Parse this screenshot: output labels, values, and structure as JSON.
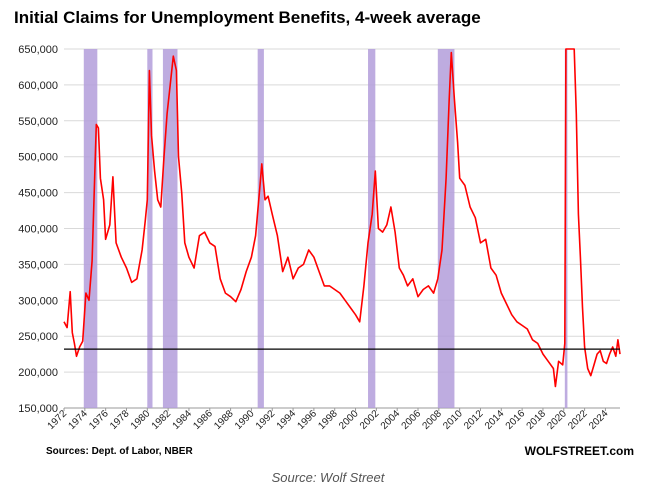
{
  "chart_data": {
    "type": "line",
    "title": "Initial Claims for Unemployment Benefits, 4-week average",
    "xlabel": "",
    "ylabel": "",
    "xlim": [
      1972,
      2025.4
    ],
    "ylim": [
      150000,
      650000
    ],
    "y_ticks": [
      150000,
      200000,
      250000,
      300000,
      350000,
      400000,
      450000,
      500000,
      550000,
      600000,
      650000
    ],
    "y_tick_labels": [
      "150,000",
      "200,000",
      "250,000",
      "300,000",
      "350,000",
      "400,000",
      "450,000",
      "500,000",
      "550,000",
      "600,000",
      "650,000"
    ],
    "x_ticks": [
      1972,
      1974,
      1976,
      1978,
      1980,
      1982,
      1984,
      1986,
      1988,
      1990,
      1992,
      1994,
      1996,
      1998,
      2000,
      2002,
      2004,
      2006,
      2008,
      2010,
      2012,
      2014,
      2016,
      2018,
      2020,
      2022,
      2024
    ],
    "grid": true,
    "line_color": "#ff0000",
    "recession_color": "#b39ddb",
    "reference_line": {
      "value": 232000,
      "color": "#000000"
    },
    "recessions": [
      [
        1973.9,
        1975.2
      ],
      [
        1980.0,
        1980.5
      ],
      [
        1981.5,
        1982.9
      ],
      [
        1990.6,
        1991.2
      ],
      [
        2001.2,
        2001.9
      ],
      [
        2007.9,
        2009.5
      ],
      [
        2020.1,
        2020.35
      ]
    ],
    "series": [
      {
        "values": [
          [
            1972.0,
            270000
          ],
          [
            1972.3,
            262000
          ],
          [
            1972.6,
            312000
          ],
          [
            1972.8,
            255000
          ],
          [
            1973.0,
            240000
          ],
          [
            1973.2,
            222000
          ],
          [
            1973.5,
            235000
          ],
          [
            1973.8,
            243000
          ],
          [
            1974.1,
            310000
          ],
          [
            1974.4,
            300000
          ],
          [
            1974.7,
            355000
          ],
          [
            1974.9,
            450000
          ],
          [
            1975.1,
            545000
          ],
          [
            1975.3,
            540000
          ],
          [
            1975.5,
            470000
          ],
          [
            1975.8,
            440000
          ],
          [
            1976.0,
            385000
          ],
          [
            1976.4,
            405000
          ],
          [
            1976.7,
            472000
          ],
          [
            1977.0,
            380000
          ],
          [
            1977.5,
            360000
          ],
          [
            1978.0,
            345000
          ],
          [
            1978.5,
            325000
          ],
          [
            1979.0,
            330000
          ],
          [
            1979.5,
            370000
          ],
          [
            1979.8,
            410000
          ],
          [
            1980.0,
            440000
          ],
          [
            1980.2,
            620000
          ],
          [
            1980.4,
            530000
          ],
          [
            1980.7,
            480000
          ],
          [
            1981.0,
            440000
          ],
          [
            1981.3,
            430000
          ],
          [
            1981.6,
            500000
          ],
          [
            1981.9,
            560000
          ],
          [
            1982.2,
            600000
          ],
          [
            1982.5,
            640000
          ],
          [
            1982.8,
            620000
          ],
          [
            1983.0,
            500000
          ],
          [
            1983.3,
            450000
          ],
          [
            1983.6,
            380000
          ],
          [
            1984.0,
            360000
          ],
          [
            1984.5,
            345000
          ],
          [
            1985.0,
            390000
          ],
          [
            1985.5,
            395000
          ],
          [
            1986.0,
            380000
          ],
          [
            1986.5,
            375000
          ],
          [
            1987.0,
            330000
          ],
          [
            1987.5,
            310000
          ],
          [
            1988.0,
            305000
          ],
          [
            1988.5,
            298000
          ],
          [
            1989.0,
            315000
          ],
          [
            1989.5,
            340000
          ],
          [
            1990.0,
            360000
          ],
          [
            1990.4,
            390000
          ],
          [
            1990.8,
            455000
          ],
          [
            1991.0,
            490000
          ],
          [
            1991.3,
            440000
          ],
          [
            1991.6,
            445000
          ],
          [
            1992.0,
            420000
          ],
          [
            1992.5,
            390000
          ],
          [
            1993.0,
            340000
          ],
          [
            1993.5,
            360000
          ],
          [
            1994.0,
            330000
          ],
          [
            1994.5,
            345000
          ],
          [
            1995.0,
            350000
          ],
          [
            1995.5,
            370000
          ],
          [
            1996.0,
            360000
          ],
          [
            1996.5,
            340000
          ],
          [
            1997.0,
            320000
          ],
          [
            1997.5,
            320000
          ],
          [
            1998.0,
            315000
          ],
          [
            1998.5,
            310000
          ],
          [
            1999.0,
            300000
          ],
          [
            1999.5,
            290000
          ],
          [
            2000.0,
            280000
          ],
          [
            2000.4,
            270000
          ],
          [
            2000.8,
            320000
          ],
          [
            2001.2,
            380000
          ],
          [
            2001.6,
            420000
          ],
          [
            2001.9,
            480000
          ],
          [
            2002.2,
            400000
          ],
          [
            2002.6,
            395000
          ],
          [
            2003.0,
            405000
          ],
          [
            2003.4,
            430000
          ],
          [
            2003.8,
            395000
          ],
          [
            2004.2,
            345000
          ],
          [
            2004.6,
            335000
          ],
          [
            2005.0,
            320000
          ],
          [
            2005.5,
            330000
          ],
          [
            2006.0,
            305000
          ],
          [
            2006.5,
            315000
          ],
          [
            2007.0,
            320000
          ],
          [
            2007.5,
            310000
          ],
          [
            2007.9,
            330000
          ],
          [
            2008.3,
            370000
          ],
          [
            2008.7,
            470000
          ],
          [
            2009.0,
            580000
          ],
          [
            2009.2,
            645000
          ],
          [
            2009.5,
            580000
          ],
          [
            2009.8,
            520000
          ],
          [
            2010.0,
            470000
          ],
          [
            2010.5,
            460000
          ],
          [
            2011.0,
            430000
          ],
          [
            2011.5,
            415000
          ],
          [
            2012.0,
            380000
          ],
          [
            2012.5,
            385000
          ],
          [
            2013.0,
            345000
          ],
          [
            2013.5,
            335000
          ],
          [
            2014.0,
            310000
          ],
          [
            2014.5,
            295000
          ],
          [
            2015.0,
            280000
          ],
          [
            2015.5,
            270000
          ],
          [
            2016.0,
            265000
          ],
          [
            2016.5,
            260000
          ],
          [
            2017.0,
            245000
          ],
          [
            2017.5,
            240000
          ],
          [
            2018.0,
            225000
          ],
          [
            2018.5,
            215000
          ],
          [
            2019.0,
            205000
          ],
          [
            2019.2,
            180000
          ],
          [
            2019.5,
            215000
          ],
          [
            2019.9,
            210000
          ],
          [
            2020.1,
            240000
          ],
          [
            2020.2,
            650000
          ],
          [
            2020.25,
            650000
          ],
          [
            2020.3,
            650000
          ],
          [
            2020.35,
            650000
          ],
          [
            2021.0,
            650000
          ],
          [
            2021.2,
            560000
          ],
          [
            2021.4,
            420000
          ],
          [
            2021.6,
            360000
          ],
          [
            2021.8,
            290000
          ],
          [
            2022.0,
            235000
          ],
          [
            2022.3,
            205000
          ],
          [
            2022.6,
            195000
          ],
          [
            2022.9,
            210000
          ],
          [
            2023.2,
            225000
          ],
          [
            2023.5,
            230000
          ],
          [
            2023.8,
            215000
          ],
          [
            2024.1,
            212000
          ],
          [
            2024.4,
            225000
          ],
          [
            2024.7,
            235000
          ],
          [
            2025.0,
            222000
          ],
          [
            2025.2,
            245000
          ],
          [
            2025.4,
            225000
          ]
        ]
      }
    ]
  },
  "source_left": "Sources: Dept. of Labor, NBER",
  "source_right": "WOLFSTREET.com",
  "caption": "Source: Wolf Street"
}
